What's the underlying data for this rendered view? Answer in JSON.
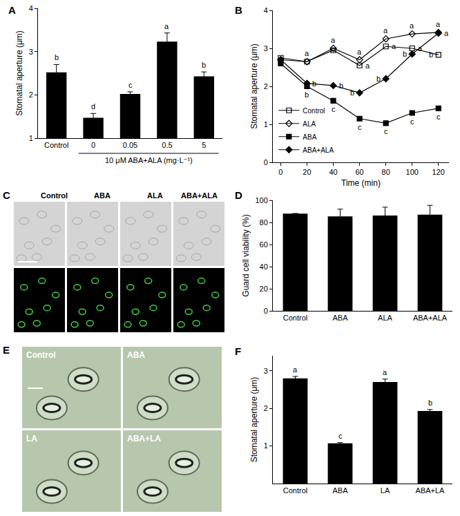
{
  "chart_data": [
    {
      "panel": "A",
      "type": "bar",
      "categories": [
        "Control",
        "0",
        "0.05",
        "0.5",
        "5"
      ],
      "values": [
        2.52,
        1.47,
        2.02,
        3.23,
        2.43
      ],
      "errors": [
        0.18,
        0.1,
        0.05,
        0.2,
        0.1
      ],
      "letters": [
        "b",
        "d",
        "c",
        "a",
        "b"
      ],
      "xlabel": "10 μM ABA+ALA (mg·L⁻¹)",
      "ylabel": "Stomatal aperture (μm)",
      "ylim": [
        1,
        4
      ],
      "yticks": [
        1,
        2,
        3,
        4
      ],
      "color": "#000000",
      "grid": false
    },
    {
      "panel": "B",
      "type": "line",
      "x": [
        0,
        20,
        40,
        60,
        80,
        100,
        120
      ],
      "xlabel": "Time (min)",
      "ylabel": "Stomatal aperture (μm)",
      "xlim": [
        -6,
        128
      ],
      "xticks": [
        0,
        20,
        40,
        60,
        80,
        100,
        120
      ],
      "ylim": [
        0,
        4
      ],
      "yticks": [
        0,
        1,
        2,
        3,
        4
      ],
      "legend": "lower left",
      "grid": false,
      "series": [
        {
          "name": "Control",
          "color": "#000000",
          "marker": "square-open",
          "line_style": "solid",
          "values": [
            2.75,
            2.65,
            2.95,
            2.55,
            3.05,
            3.0,
            2.83
          ],
          "letters": [
            null,
            "a",
            null,
            "a",
            "a",
            "a",
            "b"
          ]
        },
        {
          "name": "ALA",
          "color": "#000000",
          "marker": "diamond-open",
          "line_style": "solid",
          "values": [
            2.7,
            2.65,
            3.0,
            2.7,
            3.25,
            3.38,
            3.42
          ],
          "letters": [
            null,
            null,
            "a",
            "a",
            "a",
            "a",
            "a"
          ]
        },
        {
          "name": "ABA",
          "color": "#000000",
          "marker": "square",
          "line_style": "solid",
          "values": [
            2.6,
            2.0,
            1.62,
            1.15,
            1.03,
            1.3,
            1.42
          ],
          "letters": [
            null,
            "b",
            "c",
            "c",
            "c",
            "c",
            "c"
          ]
        },
        {
          "name": "ABA+ALA",
          "color": "#000000",
          "marker": "diamond",
          "line_style": "solid",
          "values": [
            2.7,
            2.08,
            2.02,
            1.83,
            2.2,
            2.85,
            3.4
          ],
          "letters": [
            null,
            "b",
            "b",
            "b",
            "b",
            "b",
            "a"
          ]
        }
      ]
    },
    {
      "panel": "D",
      "type": "bar",
      "categories": [
        "Control",
        "ABA",
        "ALA",
        "ABA+ALA"
      ],
      "values": [
        88,
        85.5,
        86.3,
        87
      ],
      "errors": [
        0,
        6.5,
        7.5,
        8.5
      ],
      "ylabel": "Guard cell viability (%)",
      "ylim": [
        0,
        100
      ],
      "yticks": [
        0,
        20,
        40,
        60,
        80,
        100
      ],
      "color": "#000000",
      "grid": false
    },
    {
      "panel": "F",
      "type": "bar",
      "categories": [
        "Control",
        "ABA",
        "LA",
        "ABA+LA"
      ],
      "values": [
        2.8,
        1.07,
        2.7,
        1.93
      ],
      "errors": [
        0.05,
        0.02,
        0.08,
        0.04
      ],
      "letters": [
        "a",
        "c",
        "a",
        "b"
      ],
      "ylabel": "Stomatal aperture (μm)",
      "ylim": [
        0,
        3.4
      ],
      "yticks": [
        1,
        2,
        3
      ],
      "color": "#000000",
      "grid": false
    }
  ],
  "images": [
    {
      "panel": "C",
      "labels": [
        "Control",
        "ABA",
        "ALA",
        "ABA+ALA"
      ]
    },
    {
      "panel": "E",
      "labels": [
        "Control",
        "ABA",
        "LA",
        "ABA+LA"
      ]
    }
  ]
}
